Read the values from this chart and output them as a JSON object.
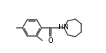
{
  "bg_color": "#ffffff",
  "line_color": "#555555",
  "line_width": 1.2,
  "label_color": "#000000",
  "hn_label": "HN",
  "o_label": "O",
  "figsize": [
    1.54,
    0.78
  ],
  "dpi": 100,
  "xlim": [
    -1.5,
    9.5
  ],
  "ylim": [
    -2.5,
    2.8
  ]
}
